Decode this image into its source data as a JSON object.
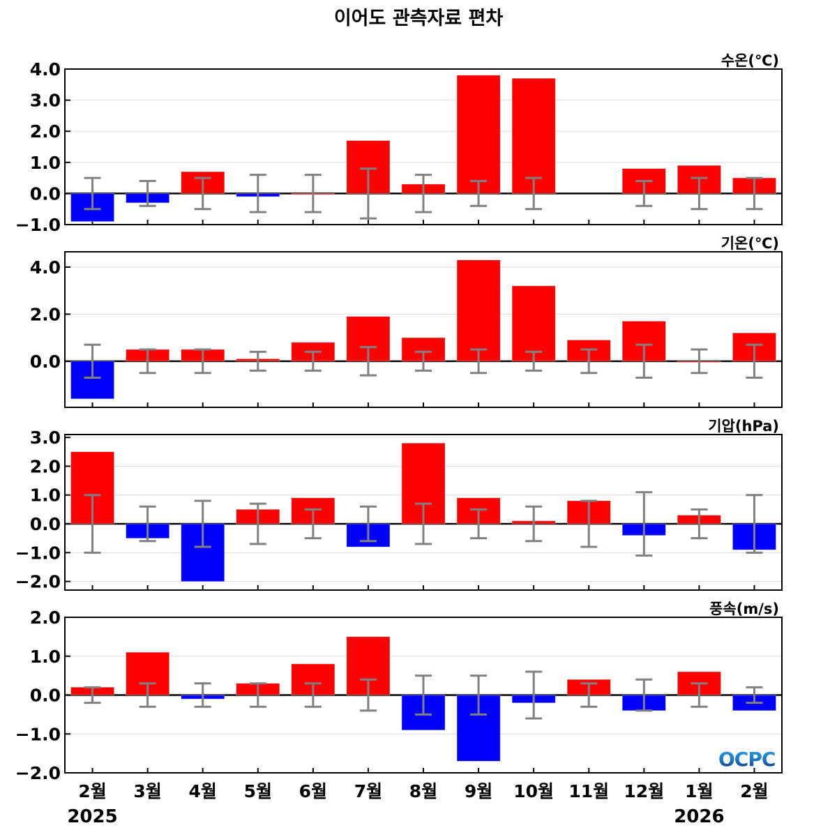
{
  "title": "이어도 관측자료 편차",
  "logo_text": "OCPC",
  "chart_data": [
    {
      "type": "bar",
      "label": "수온(℃)",
      "categories": [
        "2월",
        "3월",
        "4월",
        "5월",
        "6월",
        "7월",
        "8월",
        "9월",
        "10월",
        "11월",
        "12월",
        "1월",
        "2월"
      ],
      "values": [
        -0.9,
        -0.3,
        0.7,
        -0.1,
        0.0,
        1.7,
        0.3,
        3.8,
        3.7,
        null,
        0.8,
        0.9,
        0.5
      ],
      "error": [
        0.5,
        0.4,
        0.5,
        0.6,
        0.6,
        0.8,
        0.6,
        0.4,
        0.5,
        null,
        0.4,
        0.5,
        0.5
      ],
      "ylim": [
        -1.0,
        4.0
      ],
      "yticks": [
        -1.0,
        0.0,
        1.0,
        2.0,
        3.0,
        4.0
      ],
      "ytick_labels": [
        "−1.0",
        "0.0",
        "1.0",
        "2.0",
        "3.0",
        "4.0"
      ],
      "grid": true
    },
    {
      "type": "bar",
      "label": "기온(℃)",
      "categories": [
        "2월",
        "3월",
        "4월",
        "5월",
        "6월",
        "7월",
        "8월",
        "9월",
        "10월",
        "11월",
        "12월",
        "1월",
        "2월"
      ],
      "values": [
        -1.6,
        0.5,
        0.5,
        0.1,
        0.8,
        1.9,
        1.0,
        4.3,
        3.2,
        0.9,
        1.7,
        0.0,
        1.2
      ],
      "error": [
        0.7,
        0.5,
        0.5,
        0.4,
        0.4,
        0.6,
        0.4,
        0.5,
        0.4,
        0.5,
        0.7,
        0.5,
        0.7
      ],
      "ylim": [
        -1.96,
        4.65
      ],
      "yticks": [
        0.0,
        2.0,
        4.0
      ],
      "ytick_labels": [
        "0.0",
        "2.0",
        "4.0"
      ],
      "grid": true
    },
    {
      "type": "bar",
      "label": "기압(hPa)",
      "categories": [
        "2월",
        "3월",
        "4월",
        "5월",
        "6월",
        "7월",
        "8월",
        "9월",
        "10월",
        "11월",
        "12월",
        "1월",
        "2월"
      ],
      "values": [
        2.5,
        -0.5,
        -2.0,
        0.5,
        0.9,
        -0.8,
        2.8,
        0.9,
        0.1,
        0.8,
        -0.4,
        0.3,
        -0.9
      ],
      "error": [
        1.0,
        0.6,
        0.8,
        0.7,
        0.5,
        0.6,
        0.7,
        0.5,
        0.6,
        0.8,
        1.1,
        0.5,
        1.0
      ],
      "ylim": [
        -2.3,
        3.1
      ],
      "yticks": [
        -2.0,
        -1.0,
        0.0,
        1.0,
        2.0,
        3.0
      ],
      "ytick_labels": [
        "−2.0",
        "−1.0",
        "0.0",
        "1.0",
        "2.0",
        "3.0"
      ],
      "grid": true
    },
    {
      "type": "bar",
      "label": "풍속(m/s)",
      "categories": [
        "2월",
        "3월",
        "4월",
        "5월",
        "6월",
        "7월",
        "8월",
        "9월",
        "10월",
        "11월",
        "12월",
        "1월",
        "2월"
      ],
      "values": [
        0.2,
        1.1,
        -0.1,
        0.3,
        0.8,
        1.5,
        -0.9,
        -1.7,
        -0.2,
        0.4,
        -0.4,
        0.6,
        -0.4
      ],
      "error": [
        0.2,
        0.3,
        0.3,
        0.3,
        0.3,
        0.4,
        0.5,
        0.5,
        0.6,
        0.3,
        0.4,
        0.3,
        0.2
      ],
      "ylim": [
        -2.0,
        2.0
      ],
      "yticks": [
        -2.0,
        -1.0,
        0.0,
        1.0,
        2.0
      ],
      "ytick_labels": [
        "−2.0",
        "−1.0",
        "0.0",
        "1.0",
        "2.0"
      ],
      "grid": true
    }
  ],
  "x_labels": [
    "2월",
    "3월",
    "4월",
    "5월",
    "6월",
    "7월",
    "8월",
    "9월",
    "10월",
    "11월",
    "12월",
    "1월",
    "2월"
  ],
  "year_labels": [
    {
      "text": "2025",
      "index": 0
    },
    {
      "text": "2026",
      "index": 11
    }
  ],
  "colors": {
    "positive": "#ff0000",
    "negative": "#0000ff",
    "error": "#808080",
    "grid": "#dddddd"
  }
}
